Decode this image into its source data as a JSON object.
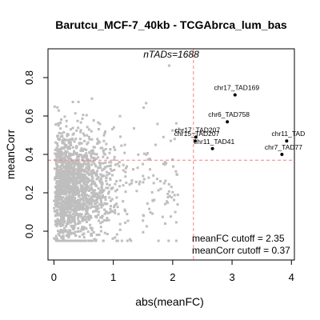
{
  "chart_data": {
    "type": "scatter",
    "title": "Barutcu_MCF-7_40kb - TCGAbrca_lum_bas",
    "xlabel": "abs(meanFC)",
    "ylabel": "meanCorr",
    "xlim": [
      -0.1,
      4.05
    ],
    "ylim": [
      -0.15,
      0.95
    ],
    "xticks": [
      0,
      1,
      2,
      3,
      4
    ],
    "yticks": [
      0.0,
      0.2,
      0.4,
      0.6,
      0.8
    ],
    "grid": false,
    "annotation_top": "nTADs=1688",
    "cutoff_text": [
      "meanFC cutoff = 2.35",
      "meanCorr cutoff = 0.37"
    ],
    "cutoffs": {
      "meanFC": 2.35,
      "meanCorr": 0.37
    },
    "colors": {
      "background_points": "#bebebe",
      "highlight_points": "#000000",
      "cutoff_lines": "#f08080"
    },
    "highlighted": [
      {
        "label": "chr17_TAD169",
        "x": 3.05,
        "y": 0.71
      },
      {
        "label": "chr6_TAD758",
        "x": 2.92,
        "y": 0.57
      },
      {
        "label": "chr17_TAD207",
        "x": 2.39,
        "y": 0.49
      },
      {
        "label": "chr15_TAD207",
        "x": 2.38,
        "y": 0.47
      },
      {
        "label": "chr11_TAD41",
        "x": 2.67,
        "y": 0.43
      },
      {
        "label": "chr11_TAD",
        "x": 3.92,
        "y": 0.47
      },
      {
        "label": "chr7_TAD77",
        "x": 3.84,
        "y": 0.4
      }
    ]
  }
}
